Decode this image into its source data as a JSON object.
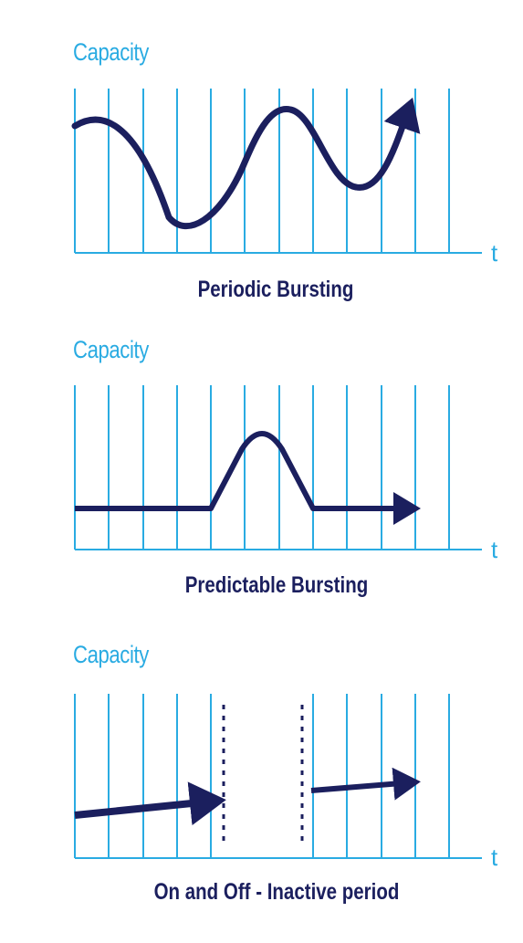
{
  "colors": {
    "grid": "#29abe2",
    "curve": "#1b1f5e",
    "caption": "#1b1f5e"
  },
  "panels": [
    {
      "y_label": "Capacity",
      "x_label": "t",
      "caption": "Periodic Bursting",
      "curve": "wave"
    },
    {
      "y_label": "Capacity",
      "x_label": "t",
      "caption": "Predictable Bursting",
      "curve": "bump"
    },
    {
      "y_label": "Capacity",
      "x_label": "t",
      "caption": "On and Off - Inactive period",
      "curve": "on-off"
    }
  ]
}
